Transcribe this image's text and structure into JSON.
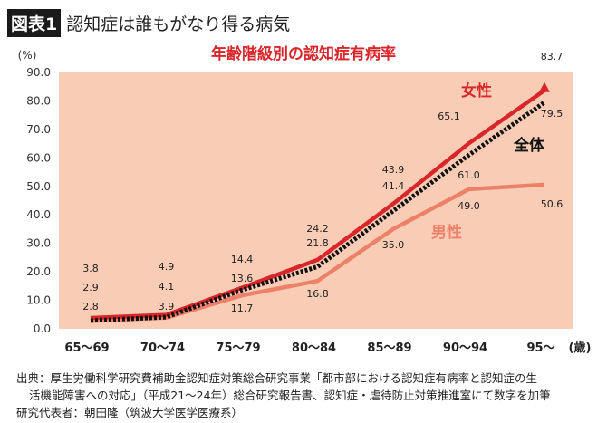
{
  "header": {
    "badge": "図表1",
    "title": "認知症は誰もがなり得る病気"
  },
  "chart_data": {
    "type": "line",
    "title": "年齢階級別の認知症有病率",
    "ylabel": "(%)",
    "xunit": "(歳)",
    "categories": [
      "65〜69",
      "70〜74",
      "75〜79",
      "80〜84",
      "85〜89",
      "90〜94",
      "95〜"
    ],
    "ylim": [
      0,
      90
    ],
    "yticks": [
      "0.0",
      "10.0",
      "20.0",
      "30.0",
      "40.0",
      "50.0",
      "60.0",
      "70.0",
      "80.0",
      "90.0"
    ],
    "grid": false,
    "series": [
      {
        "name": "女性",
        "values": [
          3.8,
          4.9,
          14.4,
          24.2,
          43.9,
          65.1,
          83.7
        ],
        "labels": [
          "3.8",
          "4.9",
          "14.4",
          "24.2",
          "43.9",
          "65.1",
          "83.7"
        ],
        "color": "#d9262b",
        "style": "solid"
      },
      {
        "name": "全体",
        "values": [
          2.9,
          4.1,
          13.6,
          21.8,
          41.4,
          61.0,
          79.5
        ],
        "labels": [
          "2.9",
          "4.1",
          "13.6",
          "21.8",
          "41.4",
          "61.0",
          "79.5"
        ],
        "color": "#111111",
        "style": "dotted"
      },
      {
        "name": "男性",
        "values": [
          2.8,
          3.9,
          11.7,
          16.8,
          35.0,
          49.0,
          50.6
        ],
        "labels": [
          "2.8",
          "3.9",
          "11.7",
          "16.8",
          "35.0",
          "49.0",
          "50.6"
        ],
        "color": "#ec8069",
        "style": "solid"
      }
    ],
    "plot_background": "#f9cdb5"
  },
  "footer": {
    "line1": "出典：厚生労働科学研究費補助金認知症対策総合研究事業「都市部における認知症有病率と認知症の生",
    "line2": "活機能障害への対応」（平成21〜24年）総合研究報告書、認知症・虐待防止対策推進室にて数字を加筆",
    "line3": "研究代表者：朝田隆（筑波大学医学医療系）"
  }
}
